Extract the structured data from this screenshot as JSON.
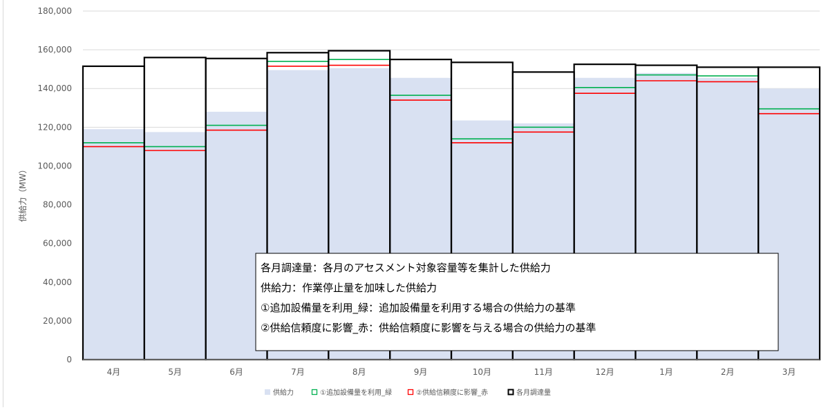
{
  "chart_data": {
    "type": "bar",
    "categories": [
      "4月",
      "5月",
      "6月",
      "7月",
      "8月",
      "9月",
      "10月",
      "11月",
      "12月",
      "1月",
      "2月",
      "3月"
    ],
    "ylabel": "供給力（MW）",
    "ylim": [
      0,
      180000
    ],
    "yticks": [
      0,
      20000,
      40000,
      60000,
      80000,
      100000,
      120000,
      140000,
      160000,
      180000
    ],
    "ytick_labels": [
      "0",
      "20,000",
      "40,000",
      "60,000",
      "80,000",
      "100,000",
      "120,000",
      "140,000",
      "160,000",
      "180,000"
    ],
    "grid": true,
    "legend_position": "bottom",
    "series": [
      {
        "name": "供給力",
        "kind": "area-bar",
        "color": "#d9e1f2",
        "values": [
          119000,
          117500,
          128000,
          149500,
          150500,
          145500,
          123500,
          122000,
          145500,
          148000,
          145500,
          140000
        ]
      },
      {
        "name": "①追加設備量を利用_緑",
        "kind": "level-line",
        "color": "#00b050",
        "values": [
          112000,
          110000,
          121000,
          154000,
          155000,
          136500,
          114000,
          120000,
          140500,
          147000,
          146500,
          129500
        ]
      },
      {
        "name": "②供給信頼度に影響_赤",
        "kind": "level-line",
        "color": "#ff0000",
        "values": [
          110000,
          108000,
          118500,
          151500,
          152000,
          134000,
          112000,
          117500,
          137500,
          144000,
          143500,
          127000
        ]
      },
      {
        "name": "各月調達量",
        "kind": "outline-bar",
        "color": "#000000",
        "values": [
          151500,
          156000,
          155500,
          158500,
          159500,
          155000,
          153500,
          148500,
          152500,
          152000,
          151000,
          151000
        ]
      }
    ],
    "annotations": [
      "各月調達量：各月のアセスメント対象容量等を集計した供給力",
      "供給力：作業停止量を加味した供給力",
      "①追加設備量を利用_緑：追加設備量を利用する場合の供給力の基準",
      "②供給信頼度に影響_赤：供給信頼度に影響を与える場合の供給力の基準"
    ]
  }
}
